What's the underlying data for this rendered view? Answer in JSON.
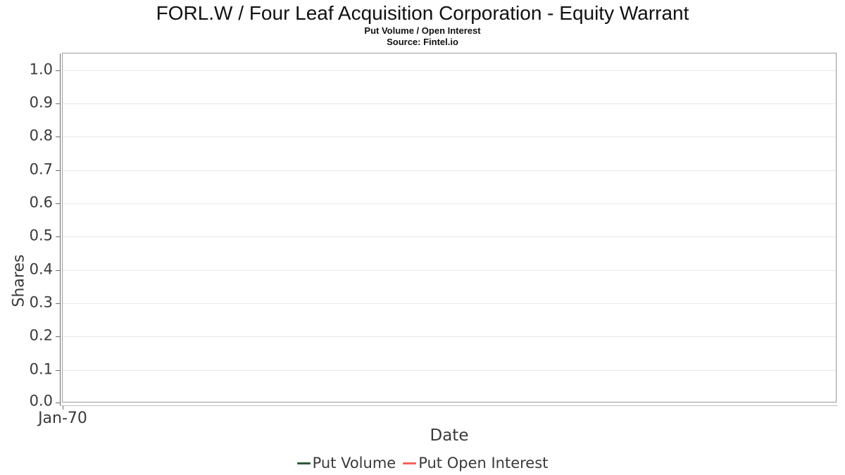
{
  "header": {
    "title": "FORL.W / Four Leaf Acquisition Corporation - Equity Warrant",
    "subtitle": "Put Volume / Open Interest",
    "source": "Source: Fintel.io"
  },
  "chart_data": {
    "type": "line",
    "title": "FORL.W / Four Leaf Acquisition Corporation - Equity Warrant",
    "subtitle": "Put Volume / Open Interest",
    "source": "Source: Fintel.io",
    "xlabel": "Date",
    "ylabel": "Shares",
    "ylim": [
      0,
      1.05
    ],
    "grid": "horizontal-only",
    "legend_position": "bottom-center",
    "yticks": [
      {
        "value": 0.0,
        "label": "0.0"
      },
      {
        "value": 0.1,
        "label": "0.1"
      },
      {
        "value": 0.2,
        "label": "0.2"
      },
      {
        "value": 0.3,
        "label": "0.3"
      },
      {
        "value": 0.4,
        "label": "0.4"
      },
      {
        "value": 0.5,
        "label": "0.5"
      },
      {
        "value": 0.6,
        "label": "0.6"
      },
      {
        "value": 0.7,
        "label": "0.7"
      },
      {
        "value": 0.8,
        "label": "0.8"
      },
      {
        "value": 0.9,
        "label": "0.9"
      },
      {
        "value": 1.0,
        "label": "1.0"
      }
    ],
    "xticks": [
      {
        "x_frac": 0.0,
        "label": "Jan-70"
      }
    ],
    "series": [
      {
        "name": "Put Volume",
        "color": "#2d5a3c",
        "x": [],
        "values": []
      },
      {
        "name": "Put Open Interest",
        "color": "#f4635c",
        "x": [],
        "values": []
      }
    ],
    "colors": {
      "grid": "#e8e8e8",
      "frame": "#9a9a9a",
      "axis": "#6b6b6b",
      "tick_text": "#3a3a3a",
      "title_text": "#111111"
    }
  }
}
